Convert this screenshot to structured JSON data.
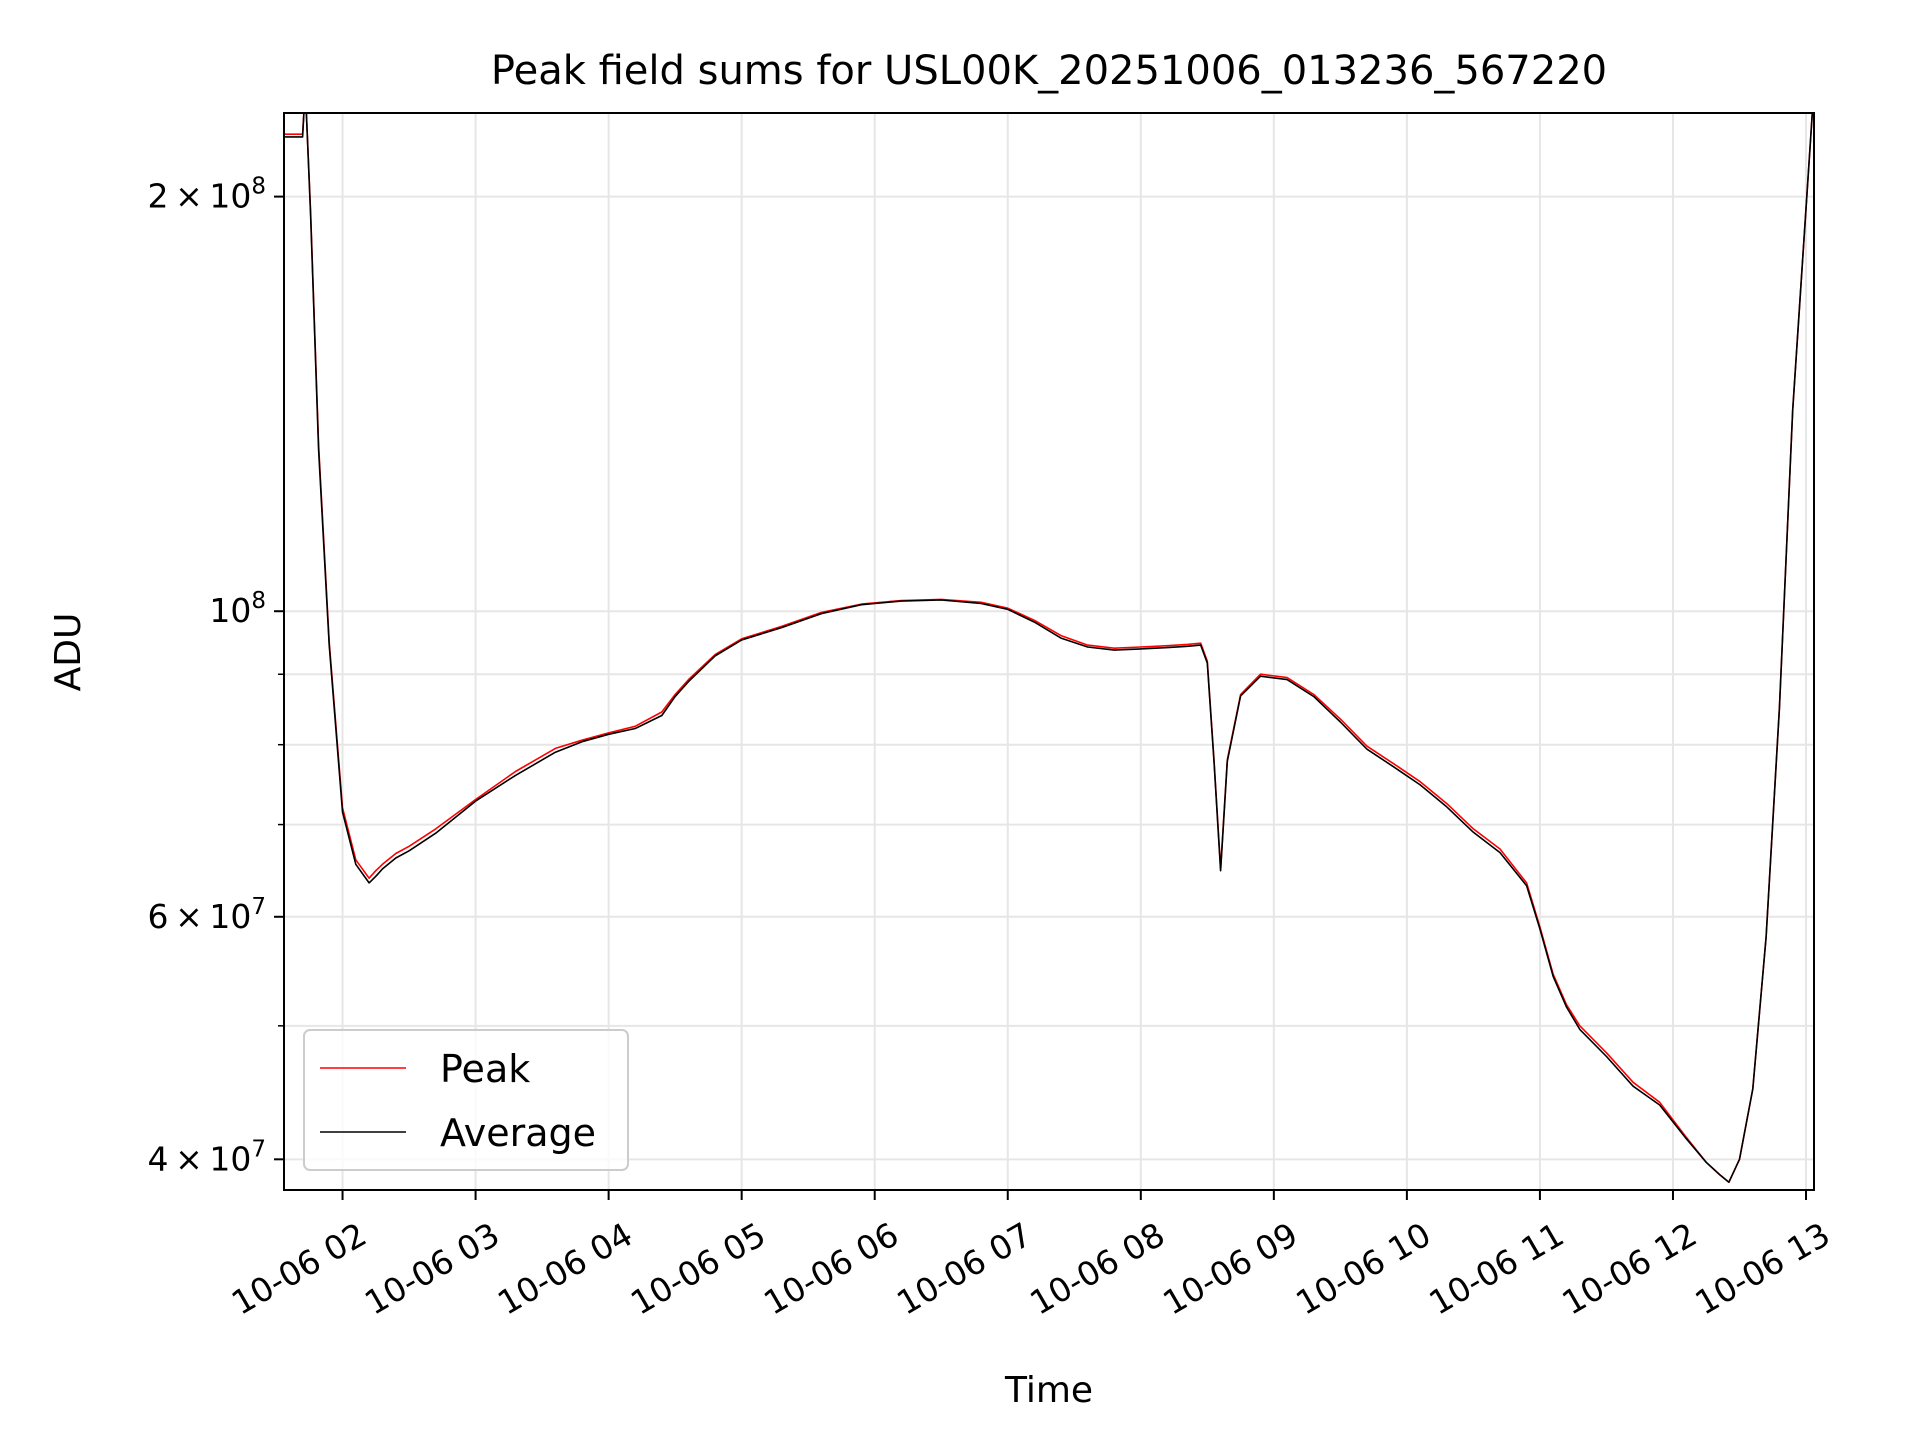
{
  "chart_data": {
    "type": "line",
    "title": "Peak field sums for USL00K_20251006_013236_567220",
    "xlabel": "Time",
    "ylabel": "ADU",
    "y_scale": "log",
    "xlim": [
      1.56,
      13.06
    ],
    "ylim": [
      38000000,
      230000000
    ],
    "x_ticks": [
      {
        "value": 2,
        "label": "10-06 02"
      },
      {
        "value": 3,
        "label": "10-06 03"
      },
      {
        "value": 4,
        "label": "10-06 04"
      },
      {
        "value": 5,
        "label": "10-06 05"
      },
      {
        "value": 6,
        "label": "10-06 06"
      },
      {
        "value": 7,
        "label": "10-06 07"
      },
      {
        "value": 8,
        "label": "10-06 08"
      },
      {
        "value": 9,
        "label": "10-06 09"
      },
      {
        "value": 10,
        "label": "10-06 10"
      },
      {
        "value": 11,
        "label": "10-06 11"
      },
      {
        "value": 12,
        "label": "10-06 12"
      },
      {
        "value": 13,
        "label": "10-06 13"
      }
    ],
    "y_major_ticks": [
      {
        "value": 40000000,
        "mantissa": "4",
        "exponent": "7"
      },
      {
        "value": 60000000,
        "mantissa": "6",
        "exponent": "7"
      },
      {
        "value": 100000000,
        "mantissa": "",
        "exponent": "8"
      },
      {
        "value": 200000000,
        "mantissa": "2",
        "exponent": "8"
      }
    ],
    "y_minor_ticks": [
      50000000,
      70000000,
      80000000,
      90000000
    ],
    "grid": true,
    "legend_position": "lower-left",
    "series": [
      {
        "name": "Peak",
        "color": "#ff0000",
        "x": [
          1.56,
          1.7,
          1.72,
          1.76,
          1.82,
          1.9,
          2.0,
          2.1,
          2.2,
          2.25,
          2.3,
          2.4,
          2.5,
          2.7,
          3.0,
          3.3,
          3.6,
          3.8,
          4.0,
          4.2,
          4.4,
          4.5,
          4.6,
          4.8,
          5.0,
          5.3,
          5.6,
          5.9,
          6.2,
          6.5,
          6.8,
          7.0,
          7.2,
          7.4,
          7.6,
          7.8,
          8.0,
          8.2,
          8.35,
          8.45,
          8.5,
          8.55,
          8.6,
          8.65,
          8.75,
          8.9,
          9.1,
          9.3,
          9.5,
          9.7,
          9.9,
          10.1,
          10.3,
          10.5,
          10.7,
          10.9,
          11.0,
          11.1,
          11.2,
          11.3,
          11.5,
          11.7,
          11.9,
          12.1,
          12.25,
          12.35,
          12.42,
          12.5,
          12.6,
          12.7,
          12.8,
          12.9,
          13.06
        ],
        "values": [
          222000000,
          222000000,
          240000000,
          195000000,
          132000000,
          95000000,
          72000000,
          66000000,
          64000000,
          64800000,
          65500000,
          66700000,
          67500000,
          69500000,
          73000000,
          76500000,
          79500000,
          80600000,
          81600000,
          82500000,
          84500000,
          87000000,
          89200000,
          93000000,
          95500000,
          97500000,
          99800000,
          101200000,
          101800000,
          102000000,
          101500000,
          100500000,
          98500000,
          96000000,
          94500000,
          94000000,
          94200000,
          94400000,
          94600000,
          94800000,
          92000000,
          78000000,
          65000000,
          78000000,
          87000000,
          90000000,
          89500000,
          87000000,
          83500000,
          79800000,
          77500000,
          75200000,
          72500000,
          69500000,
          67200000,
          63500000,
          59000000,
          54500000,
          51800000,
          50000000,
          47800000,
          45500000,
          44000000,
          41500000,
          39800000,
          39000000,
          38500000,
          40000000,
          45000000,
          58000000,
          85000000,
          140000000,
          240000000
        ]
      },
      {
        "name": "Average",
        "color": "#000000",
        "x": [
          1.56,
          1.7,
          1.72,
          1.76,
          1.82,
          1.9,
          2.0,
          2.1,
          2.2,
          2.25,
          2.3,
          2.4,
          2.5,
          2.7,
          3.0,
          3.3,
          3.6,
          3.8,
          4.0,
          4.2,
          4.4,
          4.5,
          4.6,
          4.8,
          5.0,
          5.3,
          5.6,
          5.9,
          6.2,
          6.5,
          6.8,
          7.0,
          7.2,
          7.4,
          7.6,
          7.8,
          8.0,
          8.2,
          8.35,
          8.45,
          8.5,
          8.55,
          8.6,
          8.65,
          8.75,
          8.9,
          9.1,
          9.3,
          9.5,
          9.7,
          9.9,
          10.1,
          10.3,
          10.5,
          10.7,
          10.9,
          11.0,
          11.1,
          11.2,
          11.3,
          11.5,
          11.7,
          11.9,
          12.1,
          12.25,
          12.35,
          12.42,
          12.5,
          12.6,
          12.7,
          12.8,
          12.9,
          13.06
        ],
        "values": [
          221000000,
          221000000,
          240000000,
          194000000,
          131000000,
          94500000,
          71500000,
          65500000,
          63500000,
          64200000,
          65000000,
          66200000,
          67000000,
          69000000,
          72800000,
          76000000,
          79000000,
          80400000,
          81400000,
          82200000,
          84000000,
          86700000,
          88900000,
          92800000,
          95300000,
          97300000,
          99600000,
          101100000,
          101700000,
          101900000,
          101300000,
          100300000,
          98200000,
          95600000,
          94200000,
          93700000,
          93900000,
          94100000,
          94300000,
          94500000,
          91700000,
          77800000,
          64800000,
          77800000,
          86800000,
          89700000,
          89200000,
          86700000,
          83100000,
          79400000,
          77100000,
          74800000,
          72100000,
          69100000,
          66800000,
          63200000,
          58800000,
          54300000,
          51600000,
          49700000,
          47500000,
          45200000,
          43800000,
          41400000,
          39800000,
          39000000,
          38500000,
          40000000,
          45000000,
          58000000,
          85000000,
          140000000,
          240000000
        ]
      }
    ]
  }
}
